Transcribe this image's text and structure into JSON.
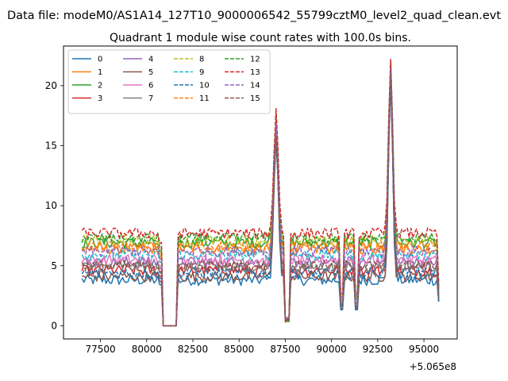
{
  "figure": {
    "suptitle": "Data file: modeM0/AS1A14_127T10_9000006542_55799cztM0_level2_quad_clean.evt",
    "title": "Quadrant 1 module wise count rates with 100.0s bins.",
    "x_offset_text": "+5.065e8"
  },
  "chart_data": {
    "type": "line",
    "title": "Quadrant 1 module wise count rates with 100.0s bins.",
    "xlabel": "",
    "ylabel": "",
    "x_offset": 506500000,
    "xlim": [
      75500,
      96800
    ],
    "ylim": [
      -1.1,
      23.3
    ],
    "x_ticks": [
      77500,
      80000,
      82500,
      85000,
      87500,
      90000,
      92500,
      95000
    ],
    "x_tick_labels": [
      "77500",
      "80000",
      "82500",
      "85000",
      "87500",
      "90000",
      "92500",
      "95000"
    ],
    "y_ticks": [
      0,
      5,
      10,
      15,
      20
    ],
    "y_tick_labels": [
      "0",
      "5",
      "10",
      "15",
      "20"
    ],
    "grid": false,
    "legend": {
      "position": "top-left",
      "columns": 4
    },
    "x_start": 76500,
    "x_end": 95800,
    "bin": 100,
    "gap": {
      "start": 80800,
      "end": 81700
    },
    "spike1_x": 87000,
    "dip1_x": 87600,
    "spike2_x": 93200,
    "dips": [
      90550,
      91350
    ],
    "series": [
      {
        "name": "0",
        "color": "#1f77b4",
        "dashed": false,
        "level": 3.8,
        "spike1": 16.5,
        "spike2": 21.0
      },
      {
        "name": "1",
        "color": "#ff7f0e",
        "dashed": false,
        "level": 6.4,
        "spike1": 17.0,
        "spike2": 21.5
      },
      {
        "name": "2",
        "color": "#2ca02c",
        "dashed": false,
        "level": 6.9,
        "spike1": 16.8,
        "spike2": 21.8
      },
      {
        "name": "3",
        "color": "#d62728",
        "dashed": false,
        "level": 4.6,
        "spike1": 15.5,
        "spike2": 20.5
      },
      {
        "name": "4",
        "color": "#9467bd",
        "dashed": false,
        "level": 5.3,
        "spike1": 16.0,
        "spike2": 21.2
      },
      {
        "name": "5",
        "color": "#8c564b",
        "dashed": false,
        "level": 4.1,
        "spike1": 15.8,
        "spike2": 20.8
      },
      {
        "name": "6",
        "color": "#e377c2",
        "dashed": false,
        "level": 5.5,
        "spike1": 16.2,
        "spike2": 21.0
      },
      {
        "name": "7",
        "color": "#7f7f7f",
        "dashed": false,
        "level": 4.9,
        "spike1": 15.6,
        "spike2": 20.6
      },
      {
        "name": "8",
        "color": "#bcbd22",
        "dashed": true,
        "level": 7.1,
        "spike1": 16.9,
        "spike2": 21.9
      },
      {
        "name": "9",
        "color": "#17becf",
        "dashed": true,
        "level": 5.9,
        "spike1": 16.4,
        "spike2": 21.4
      },
      {
        "name": "10",
        "color": "#1f77b4",
        "dashed": true,
        "level": 4.4,
        "spike1": 15.7,
        "spike2": 20.7
      },
      {
        "name": "11",
        "color": "#ff7f0e",
        "dashed": true,
        "level": 6.6,
        "spike1": 17.2,
        "spike2": 21.6
      },
      {
        "name": "12",
        "color": "#2ca02c",
        "dashed": true,
        "level": 7.3,
        "spike1": 17.4,
        "spike2": 22.0
      },
      {
        "name": "13",
        "color": "#d62728",
        "dashed": true,
        "level": 7.7,
        "spike1": 18.2,
        "spike2": 22.4
      },
      {
        "name": "14",
        "color": "#9467bd",
        "dashed": true,
        "level": 6.2,
        "spike1": 16.6,
        "spike2": 21.7
      },
      {
        "name": "15",
        "color": "#8c564b",
        "dashed": true,
        "level": 5.0,
        "spike1": 15.9,
        "spike2": 20.9
      }
    ]
  }
}
